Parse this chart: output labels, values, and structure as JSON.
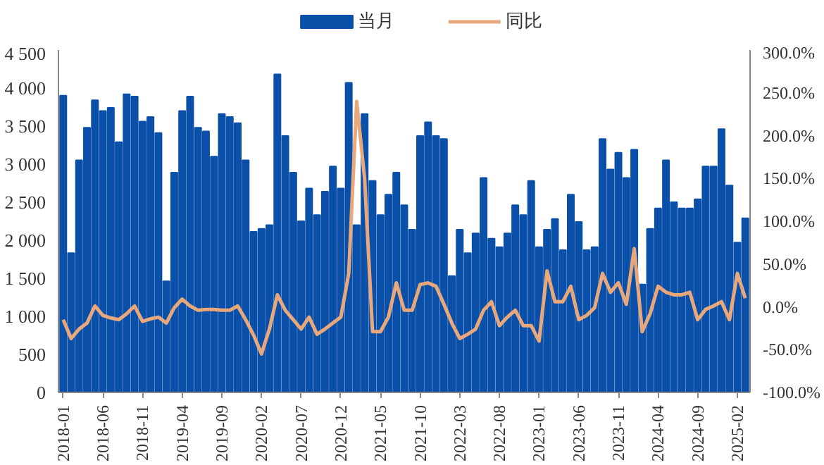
{
  "chart_data": {
    "type": "bar",
    "categories": [
      "2018-01",
      null,
      null,
      null,
      null,
      "2018-06",
      null,
      null,
      null,
      null,
      "2018-11",
      null,
      null,
      null,
      null,
      "2019-04",
      null,
      null,
      null,
      null,
      "2019-09",
      null,
      null,
      null,
      null,
      "2020-02",
      null,
      null,
      null,
      null,
      "2020-07",
      null,
      null,
      null,
      null,
      "2020-12",
      null,
      null,
      null,
      null,
      "2021-05",
      null,
      null,
      null,
      null,
      "2021-10",
      null,
      null,
      null,
      null,
      "2022-03",
      null,
      null,
      null,
      null,
      "2022-08",
      null,
      null,
      null,
      null,
      "2023-01",
      null,
      null,
      null,
      null,
      "2023-06",
      null,
      null,
      null,
      null,
      "2023-11",
      null,
      null,
      null,
      null,
      "2024-04",
      null,
      null,
      null,
      null,
      "2024-09",
      null,
      null,
      null,
      null,
      "2025-02",
      null
    ],
    "series": [
      {
        "name": "当月",
        "color": "#0a4fa8",
        "values": [
          3900,
          1830,
          3050,
          3480,
          3840,
          3700,
          3740,
          3290,
          3920,
          3890,
          3560,
          3620,
          3410,
          1460,
          2890,
          3700,
          3890,
          3480,
          3430,
          3100,
          3660,
          3620,
          3540,
          3050,
          2110,
          2150,
          2200,
          4180,
          3370,
          2890,
          2250,
          2680,
          2330,
          2640,
          2970,
          2680,
          4070,
          2200,
          3660,
          2780,
          2330,
          2600,
          2890,
          2460,
          2140,
          3370,
          3550,
          3370,
          3330,
          1530,
          2140,
          1830,
          2090,
          2820,
          2020,
          1910,
          2090,
          2460,
          2330,
          2780,
          1910,
          2140,
          2280,
          1870,
          2600,
          2240,
          1870,
          1910,
          3330,
          2930,
          3150,
          2820,
          3190,
          1420,
          2150,
          2420,
          3050,
          2500,
          2420,
          2420,
          2540,
          2970,
          2970,
          3460,
          2720,
          1970,
          2290
        ]
      },
      {
        "name": "同比",
        "type": "line",
        "axis": "y2",
        "color": "#e8a87c",
        "values": [
          -15,
          -37,
          -26,
          -19,
          1,
          -10,
          -13,
          -15,
          -8,
          1,
          -17,
          -14,
          -12,
          -19,
          -1,
          9,
          1,
          -4,
          -3,
          -3,
          -4,
          -4,
          1,
          -15,
          -33,
          -55,
          -26,
          14,
          -4,
          -15,
          -26,
          -12,
          -32,
          -26,
          -19,
          -12,
          39,
          240,
          150,
          -29,
          -29,
          -12,
          28,
          -4,
          -4,
          26,
          28,
          24,
          3,
          -19,
          -37,
          -32,
          -26,
          -4,
          6,
          -22,
          -12,
          -4,
          -22,
          -22,
          -40,
          42,
          6,
          6,
          24,
          -15,
          -10,
          -1,
          39,
          17,
          28,
          3,
          68,
          -29,
          -8,
          24,
          17,
          14,
          14,
          17,
          -15,
          -3,
          1,
          6,
          -15,
          39,
          10
        ]
      }
    ],
    "ylim": [
      0,
      4500
    ],
    "yticks": [
      0,
      {
        "value": 500,
        "label": "500"
      },
      {
        "value": 1000,
        "label": "1 000"
      },
      {
        "value": 1500,
        "label": "1 500"
      },
      {
        "value": 2000,
        "label": "2 000"
      },
      {
        "value": 2500,
        "label": "2 500"
      },
      {
        "value": 3000,
        "label": "3 000"
      },
      {
        "value": 3500,
        "label": "3 500"
      },
      {
        "value": 4000,
        "label": "4 000"
      },
      {
        "value": 4500,
        "label": "4 500"
      }
    ],
    "y2lim": [
      -100,
      300
    ],
    "y2ticks": [
      {
        "value": -100,
        "label": "-100.0%"
      },
      {
        "value": -50,
        "label": "-50.0%"
      },
      {
        "value": 0,
        "label": "0.0%"
      },
      {
        "value": 50,
        "label": "50.0%"
      },
      {
        "value": 100,
        "label": "100.0%"
      },
      {
        "value": 150,
        "label": "150.0%"
      },
      {
        "value": 200,
        "label": "200.0%"
      },
      {
        "value": 250,
        "label": "250.0%"
      },
      {
        "value": 300,
        "label": "300.0%"
      }
    ],
    "grid": false,
    "legend": "top"
  }
}
